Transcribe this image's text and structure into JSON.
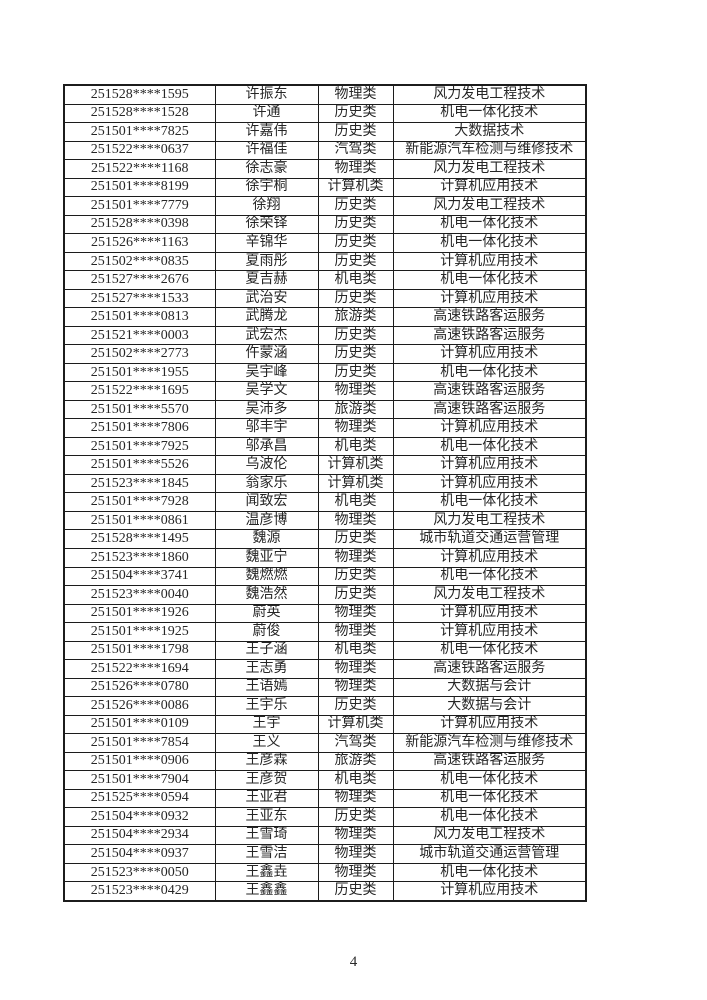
{
  "page": {
    "number": "4"
  },
  "table": {
    "rows": [
      {
        "id": "251528****1595",
        "name": "许振东",
        "category": "物理类",
        "major": "风力发电工程技术"
      },
      {
        "id": "251528****1528",
        "name": "许通",
        "category": "历史类",
        "major": "机电一体化技术"
      },
      {
        "id": "251501****7825",
        "name": "许嘉伟",
        "category": "历史类",
        "major": "大数据技术"
      },
      {
        "id": "251522****0637",
        "name": "许福佳",
        "category": "汽驾类",
        "major": "新能源汽车检测与维修技术"
      },
      {
        "id": "251522****1168",
        "name": "徐志豪",
        "category": "物理类",
        "major": "风力发电工程技术"
      },
      {
        "id": "251501****8199",
        "name": "徐宇桐",
        "category": "计算机类",
        "major": "计算机应用技术"
      },
      {
        "id": "251501****7779",
        "name": "徐翔",
        "category": "历史类",
        "major": "风力发电工程技术"
      },
      {
        "id": "251528****0398",
        "name": "徐荣铎",
        "category": "历史类",
        "major": "机电一体化技术"
      },
      {
        "id": "251526****1163",
        "name": "辛锦华",
        "category": "历史类",
        "major": "机电一体化技术"
      },
      {
        "id": "251502****0835",
        "name": "夏雨彤",
        "category": "历史类",
        "major": "计算机应用技术"
      },
      {
        "id": "251527****2676",
        "name": "夏吉赫",
        "category": "机电类",
        "major": "机电一体化技术"
      },
      {
        "id": "251527****1533",
        "name": "武治安",
        "category": "历史类",
        "major": "计算机应用技术"
      },
      {
        "id": "251501****0813",
        "name": "武腾龙",
        "category": "旅游类",
        "major": "高速铁路客运服务"
      },
      {
        "id": "251521****0003",
        "name": "武宏杰",
        "category": "历史类",
        "major": "高速铁路客运服务"
      },
      {
        "id": "251502****2773",
        "name": "仵蒙涵",
        "category": "历史类",
        "major": "计算机应用技术"
      },
      {
        "id": "251501****1955",
        "name": "吴宇峰",
        "category": "历史类",
        "major": "机电一体化技术"
      },
      {
        "id": "251522****1695",
        "name": "吴学文",
        "category": "物理类",
        "major": "高速铁路客运服务"
      },
      {
        "id": "251501****5570",
        "name": "吴沛多",
        "category": "旅游类",
        "major": "高速铁路客运服务"
      },
      {
        "id": "251501****7806",
        "name": "邬丰宇",
        "category": "物理类",
        "major": "计算机应用技术"
      },
      {
        "id": "251501****7925",
        "name": "邬承昌",
        "category": "机电类",
        "major": "机电一体化技术"
      },
      {
        "id": "251501****5526",
        "name": "乌波伦",
        "category": "计算机类",
        "major": "计算机应用技术"
      },
      {
        "id": "251523****1845",
        "name": "翁家乐",
        "category": "计算机类",
        "major": "计算机应用技术"
      },
      {
        "id": "251501****7928",
        "name": "闻致宏",
        "category": "机电类",
        "major": "机电一体化技术"
      },
      {
        "id": "251501****0861",
        "name": "温彦博",
        "category": "物理类",
        "major": "风力发电工程技术"
      },
      {
        "id": "251528****1495",
        "name": "魏源",
        "category": "历史类",
        "major": "城市轨道交通运营管理"
      },
      {
        "id": "251523****1860",
        "name": "魏亚宁",
        "category": "物理类",
        "major": "计算机应用技术"
      },
      {
        "id": "251504****3741",
        "name": "魏燃燃",
        "category": "历史类",
        "major": "机电一体化技术"
      },
      {
        "id": "251523****0040",
        "name": "魏浩然",
        "category": "历史类",
        "major": "风力发电工程技术"
      },
      {
        "id": "251501****1926",
        "name": "蔚英",
        "category": "物理类",
        "major": "计算机应用技术"
      },
      {
        "id": "251501****1925",
        "name": "蔚俊",
        "category": "物理类",
        "major": "计算机应用技术"
      },
      {
        "id": "251501****1798",
        "name": "王子涵",
        "category": "机电类",
        "major": "机电一体化技术"
      },
      {
        "id": "251522****1694",
        "name": "王志勇",
        "category": "物理类",
        "major": "高速铁路客运服务"
      },
      {
        "id": "251526****0780",
        "name": "王语嫣",
        "category": "物理类",
        "major": "大数据与会计"
      },
      {
        "id": "251526****0086",
        "name": "王宇乐",
        "category": "历史类",
        "major": "大数据与会计"
      },
      {
        "id": "251501****0109",
        "name": "王宇",
        "category": "计算机类",
        "major": "计算机应用技术"
      },
      {
        "id": "251501****7854",
        "name": "王义",
        "category": "汽驾类",
        "major": "新能源汽车检测与维修技术"
      },
      {
        "id": "251501****0906",
        "name": "王彦霖",
        "category": "旅游类",
        "major": "高速铁路客运服务"
      },
      {
        "id": "251501****7904",
        "name": "王彦贺",
        "category": "机电类",
        "major": "机电一体化技术"
      },
      {
        "id": "251525****0594",
        "name": "王亚君",
        "category": "物理类",
        "major": "机电一体化技术"
      },
      {
        "id": "251504****0932",
        "name": "王亚东",
        "category": "历史类",
        "major": "机电一体化技术"
      },
      {
        "id": "251504****2934",
        "name": "王雪琦",
        "category": "物理类",
        "major": "风力发电工程技术"
      },
      {
        "id": "251504****0937",
        "name": "王雪洁",
        "category": "物理类",
        "major": "城市轨道交通运营管理"
      },
      {
        "id": "251523****0050",
        "name": "王鑫垚",
        "category": "物理类",
        "major": "机电一体化技术"
      },
      {
        "id": "251523****0429",
        "name": "王鑫鑫",
        "category": "历史类",
        "major": "计算机应用技术"
      }
    ]
  }
}
